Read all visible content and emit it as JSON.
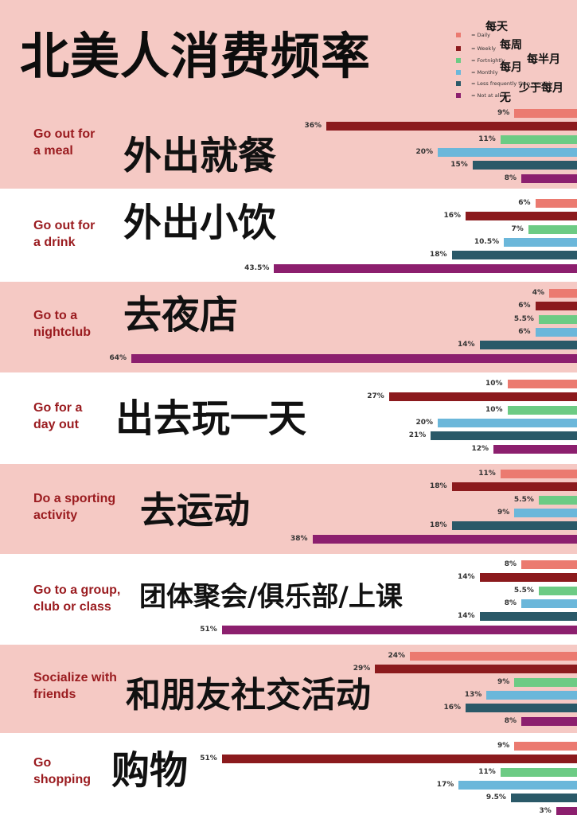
{
  "page_title": "北美人消费频率",
  "colors": {
    "band_pink": "#f5c9c4",
    "band_white": "#ffffff",
    "category_text": "#9a1b1f"
  },
  "chart_data": {
    "type": "bar",
    "orientation": "horizontal",
    "value_unit": "%",
    "series": [
      {
        "name": "= Daily",
        "name_zh": "每天",
        "color": "#eb7a70"
      },
      {
        "name": "= Weekly",
        "name_zh": "每周",
        "color": "#8b1a1d"
      },
      {
        "name": "= Fortnightly",
        "name_zh": "每半月",
        "color": "#6ccb84"
      },
      {
        "name": "= Monthly",
        "name_zh": "每月",
        "color": "#6bb7da"
      },
      {
        "name": "= Less frequently than monthly",
        "name_zh": "少于每月",
        "color": "#2a5968"
      },
      {
        "name": "= Not at all",
        "name_zh": "无",
        "color": "#8c1f6e"
      }
    ],
    "categories": [
      {
        "label": "Go out for\na meal",
        "label_zh": "外出就餐",
        "values": [
          9,
          36,
          11,
          20,
          15,
          8
        ],
        "labels": [
          "9%",
          "36%",
          "11%",
          "20%",
          "15%",
          "8%"
        ]
      },
      {
        "label": "Go out for\na drink",
        "label_zh": "外出小饮",
        "values": [
          6,
          16,
          7,
          10.5,
          18,
          43.5
        ],
        "labels": [
          "6%",
          "16%",
          "7%",
          "10.5%",
          "18%",
          "43.5%"
        ]
      },
      {
        "label": "Go to a\nnightclub",
        "label_zh": "去夜店",
        "values": [
          4,
          6,
          5.5,
          6,
          14,
          64
        ],
        "labels": [
          "4%",
          "6%",
          "5.5%",
          "6%",
          "14%",
          "64%"
        ]
      },
      {
        "label": "Go for a\nday out",
        "label_zh": "出去玩一天",
        "values": [
          10,
          27,
          10,
          20,
          21,
          12
        ],
        "labels": [
          "10%",
          "27%",
          "10%",
          "20%",
          "21%",
          "12%"
        ]
      },
      {
        "label": "Do a sporting\nactivity",
        "label_zh": "去运动",
        "values": [
          11,
          18,
          5.5,
          9,
          18,
          38
        ],
        "labels": [
          "11%",
          "18%",
          "5.5%",
          "9%",
          "18%",
          "38%"
        ]
      },
      {
        "label": "Go to a group,\nclub or class",
        "label_zh": "团体聚会/俱乐部/上课",
        "values": [
          8,
          14,
          5.5,
          8,
          14,
          51
        ],
        "labels": [
          "8%",
          "14%",
          "5.5%",
          "8%",
          "14%",
          "51%"
        ]
      },
      {
        "label": "Socialize with\nfriends",
        "label_zh": "和朋友社交活动",
        "values": [
          24,
          29,
          9,
          13,
          16,
          8
        ],
        "labels": [
          "24%",
          "29%",
          "9%",
          "13%",
          "16%",
          "8%"
        ]
      },
      {
        "label": "Go\nshopping",
        "label_zh": "购物",
        "values": [
          9,
          51,
          11,
          17,
          9.5,
          3
        ],
        "labels": [
          "9%",
          "51%",
          "11%",
          "17%",
          "9.5%",
          "3%"
        ]
      }
    ]
  }
}
